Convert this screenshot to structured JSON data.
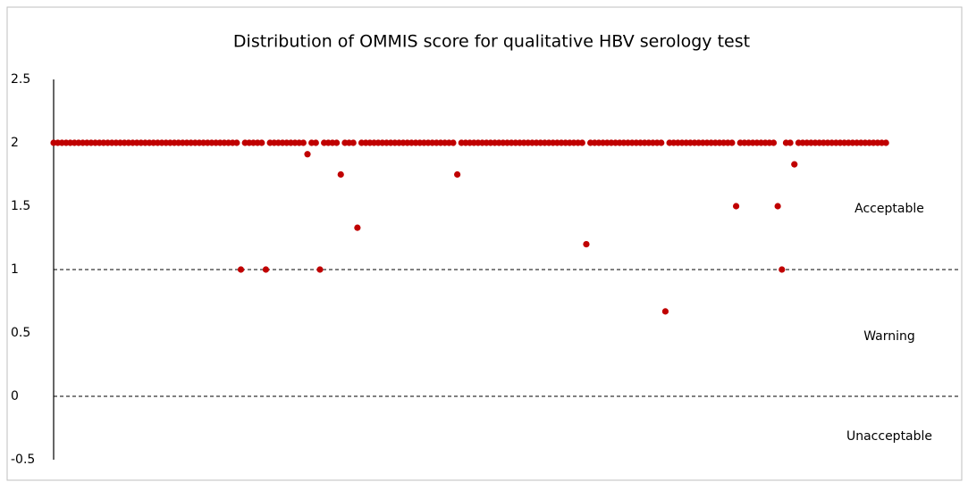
{
  "chart_data": {
    "type": "scatter",
    "title": "Distribution of OMMIS score for qualitative HBV serology test",
    "x": [
      1,
      2,
      3,
      4,
      5,
      6,
      7,
      8,
      9,
      10,
      11,
      12,
      13,
      14,
      15,
      16,
      17,
      18,
      19,
      20,
      21,
      22,
      23,
      24,
      25,
      26,
      27,
      28,
      29,
      30,
      31,
      32,
      33,
      34,
      35,
      36,
      37,
      38,
      39,
      40,
      41,
      42,
      43,
      44,
      45,
      46,
      47,
      48,
      49,
      50,
      51,
      52,
      53,
      54,
      55,
      56,
      57,
      58,
      59,
      60,
      61,
      62,
      63,
      64,
      65,
      66,
      67,
      68,
      69,
      70,
      71,
      72,
      73,
      74,
      75,
      76,
      77,
      78,
      79,
      80,
      81,
      82,
      83,
      84,
      85,
      86,
      87,
      88,
      89,
      90,
      91,
      92,
      93,
      94,
      95,
      96,
      97,
      98,
      99,
      100,
      101,
      102,
      103,
      104,
      105,
      106,
      107,
      108,
      109,
      110,
      111,
      112,
      113,
      114,
      115,
      116,
      117,
      118,
      119,
      120,
      121,
      122,
      123,
      124,
      125,
      126,
      127,
      128,
      129,
      130,
      131,
      132,
      133,
      134,
      135,
      136,
      137,
      138,
      139,
      140,
      141,
      142,
      143,
      144,
      145,
      146,
      147,
      148,
      149,
      150,
      151,
      152,
      153,
      154,
      155,
      156,
      157,
      158,
      159,
      160,
      161,
      162,
      163,
      164,
      165,
      166,
      167,
      168,
      169,
      170,
      171,
      172,
      173,
      174,
      175,
      176,
      177,
      178,
      179,
      180,
      181,
      182,
      183,
      184,
      185,
      186,
      187,
      188,
      189,
      190,
      191,
      192,
      193,
      194,
      195,
      196,
      197,
      198,
      199,
      200,
      201
    ],
    "series": [
      {
        "name": "OMMIS score",
        "color": "#c00000",
        "values": [
          2,
          2,
          2,
          2,
          2,
          2,
          2,
          2,
          2,
          2,
          2,
          2,
          2,
          2,
          2,
          2,
          2,
          2,
          2,
          2,
          2,
          2,
          2,
          2,
          2,
          2,
          2,
          2,
          2,
          2,
          2,
          2,
          2,
          2,
          2,
          2,
          2,
          2,
          2,
          2,
          2,
          2,
          2,
          2,
          2,
          1,
          2,
          2,
          2,
          2,
          2,
          1,
          2,
          2,
          2,
          2,
          2,
          2,
          2,
          2,
          2,
          1.91,
          2,
          2,
          1,
          2,
          2,
          2,
          2,
          1.75,
          2,
          2,
          2,
          1.33,
          2,
          2,
          2,
          2,
          2,
          2,
          2,
          2,
          2,
          2,
          2,
          2,
          2,
          2,
          2,
          2,
          2,
          2,
          2,
          2,
          2,
          2,
          2,
          1.75,
          2,
          2,
          2,
          2,
          2,
          2,
          2,
          2,
          2,
          2,
          2,
          2,
          2,
          2,
          2,
          2,
          2,
          2,
          2,
          2,
          2,
          2,
          2,
          2,
          2,
          2,
          2,
          2,
          2,
          2,
          1.2,
          2,
          2,
          2,
          2,
          2,
          2,
          2,
          2,
          2,
          2,
          2,
          2,
          2,
          2,
          2,
          2,
          2,
          2,
          0.67,
          2,
          2,
          2,
          2,
          2,
          2,
          2,
          2,
          2,
          2,
          2,
          2,
          2,
          2,
          2,
          2,
          1.5,
          2,
          2,
          2,
          2,
          2,
          2,
          2,
          2,
          2,
          1.5,
          1,
          2,
          2,
          1.83,
          2,
          2,
          2,
          2,
          2,
          2,
          2,
          2,
          2,
          2,
          2,
          2,
          2,
          2,
          2,
          2,
          2,
          2,
          2,
          2,
          2,
          2
        ]
      }
    ],
    "xlim": [
      1,
      219
    ],
    "ylim": [
      -0.5,
      2.5
    ],
    "yticks": [
      -0.5,
      0,
      0.5,
      1,
      1.5,
      2,
      2.5
    ],
    "thresholds": [
      1,
      0
    ],
    "annotations": [
      "Acceptable",
      "Warning",
      "Unacceptable"
    ]
  }
}
